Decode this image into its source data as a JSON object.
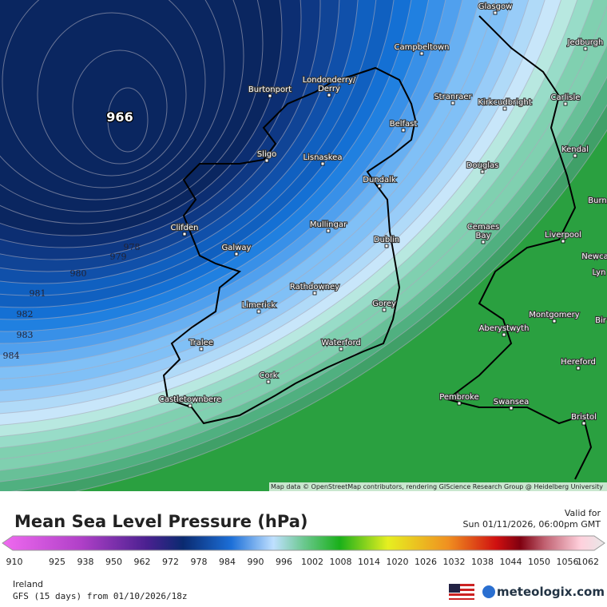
{
  "map": {
    "low_label": "966",
    "isobar_labels": [
      "978",
      "979",
      "980",
      "981",
      "982",
      "983",
      "984"
    ],
    "cities": [
      "Glasgow",
      "Campbeltown",
      "Burtonport",
      "Londonderry/",
      "Derry",
      "Jedburgh",
      "Stranraer",
      "Kirkcudbright",
      "Carlisle",
      "Belfast",
      "Sligo",
      "Lisnaskea",
      "Kendal",
      "Douglas",
      "Dundalk",
      "Burn",
      "Clifden",
      "Mullingar",
      "Cemaes",
      "Bay",
      "Liverpool",
      "Galway",
      "Dublin",
      "Newca",
      "Lyn",
      "Rathdowney",
      "Limerick",
      "Gorey",
      "Montgomery",
      "Bir",
      "Aberystwyth",
      "Tralee",
      "Waterford",
      "Hereford",
      "Cork",
      "Pembroke",
      "Swansea",
      "Castletownbere",
      "Bristol"
    ],
    "attribution": "Map data © OpenStreetMap contributors, rendering GIScience Research Group @ Heidelberg University"
  },
  "legend": {
    "title": "Mean Sea Level Pressure (hPa)",
    "valid_label": "Valid for",
    "valid_time": "Sun 01/11/2026, 06:00pm GMT",
    "ticks": [
      910,
      925,
      938,
      950,
      962,
      972,
      978,
      984,
      990,
      996,
      1002,
      1008,
      1014,
      1020,
      1026,
      1032,
      1038,
      1044,
      1050,
      1056,
      1062
    ]
  },
  "footer": {
    "region": "Ireland",
    "model": "GFS (15 days) from 01/10/2026/18z",
    "brand": "meteologix.com"
  }
}
